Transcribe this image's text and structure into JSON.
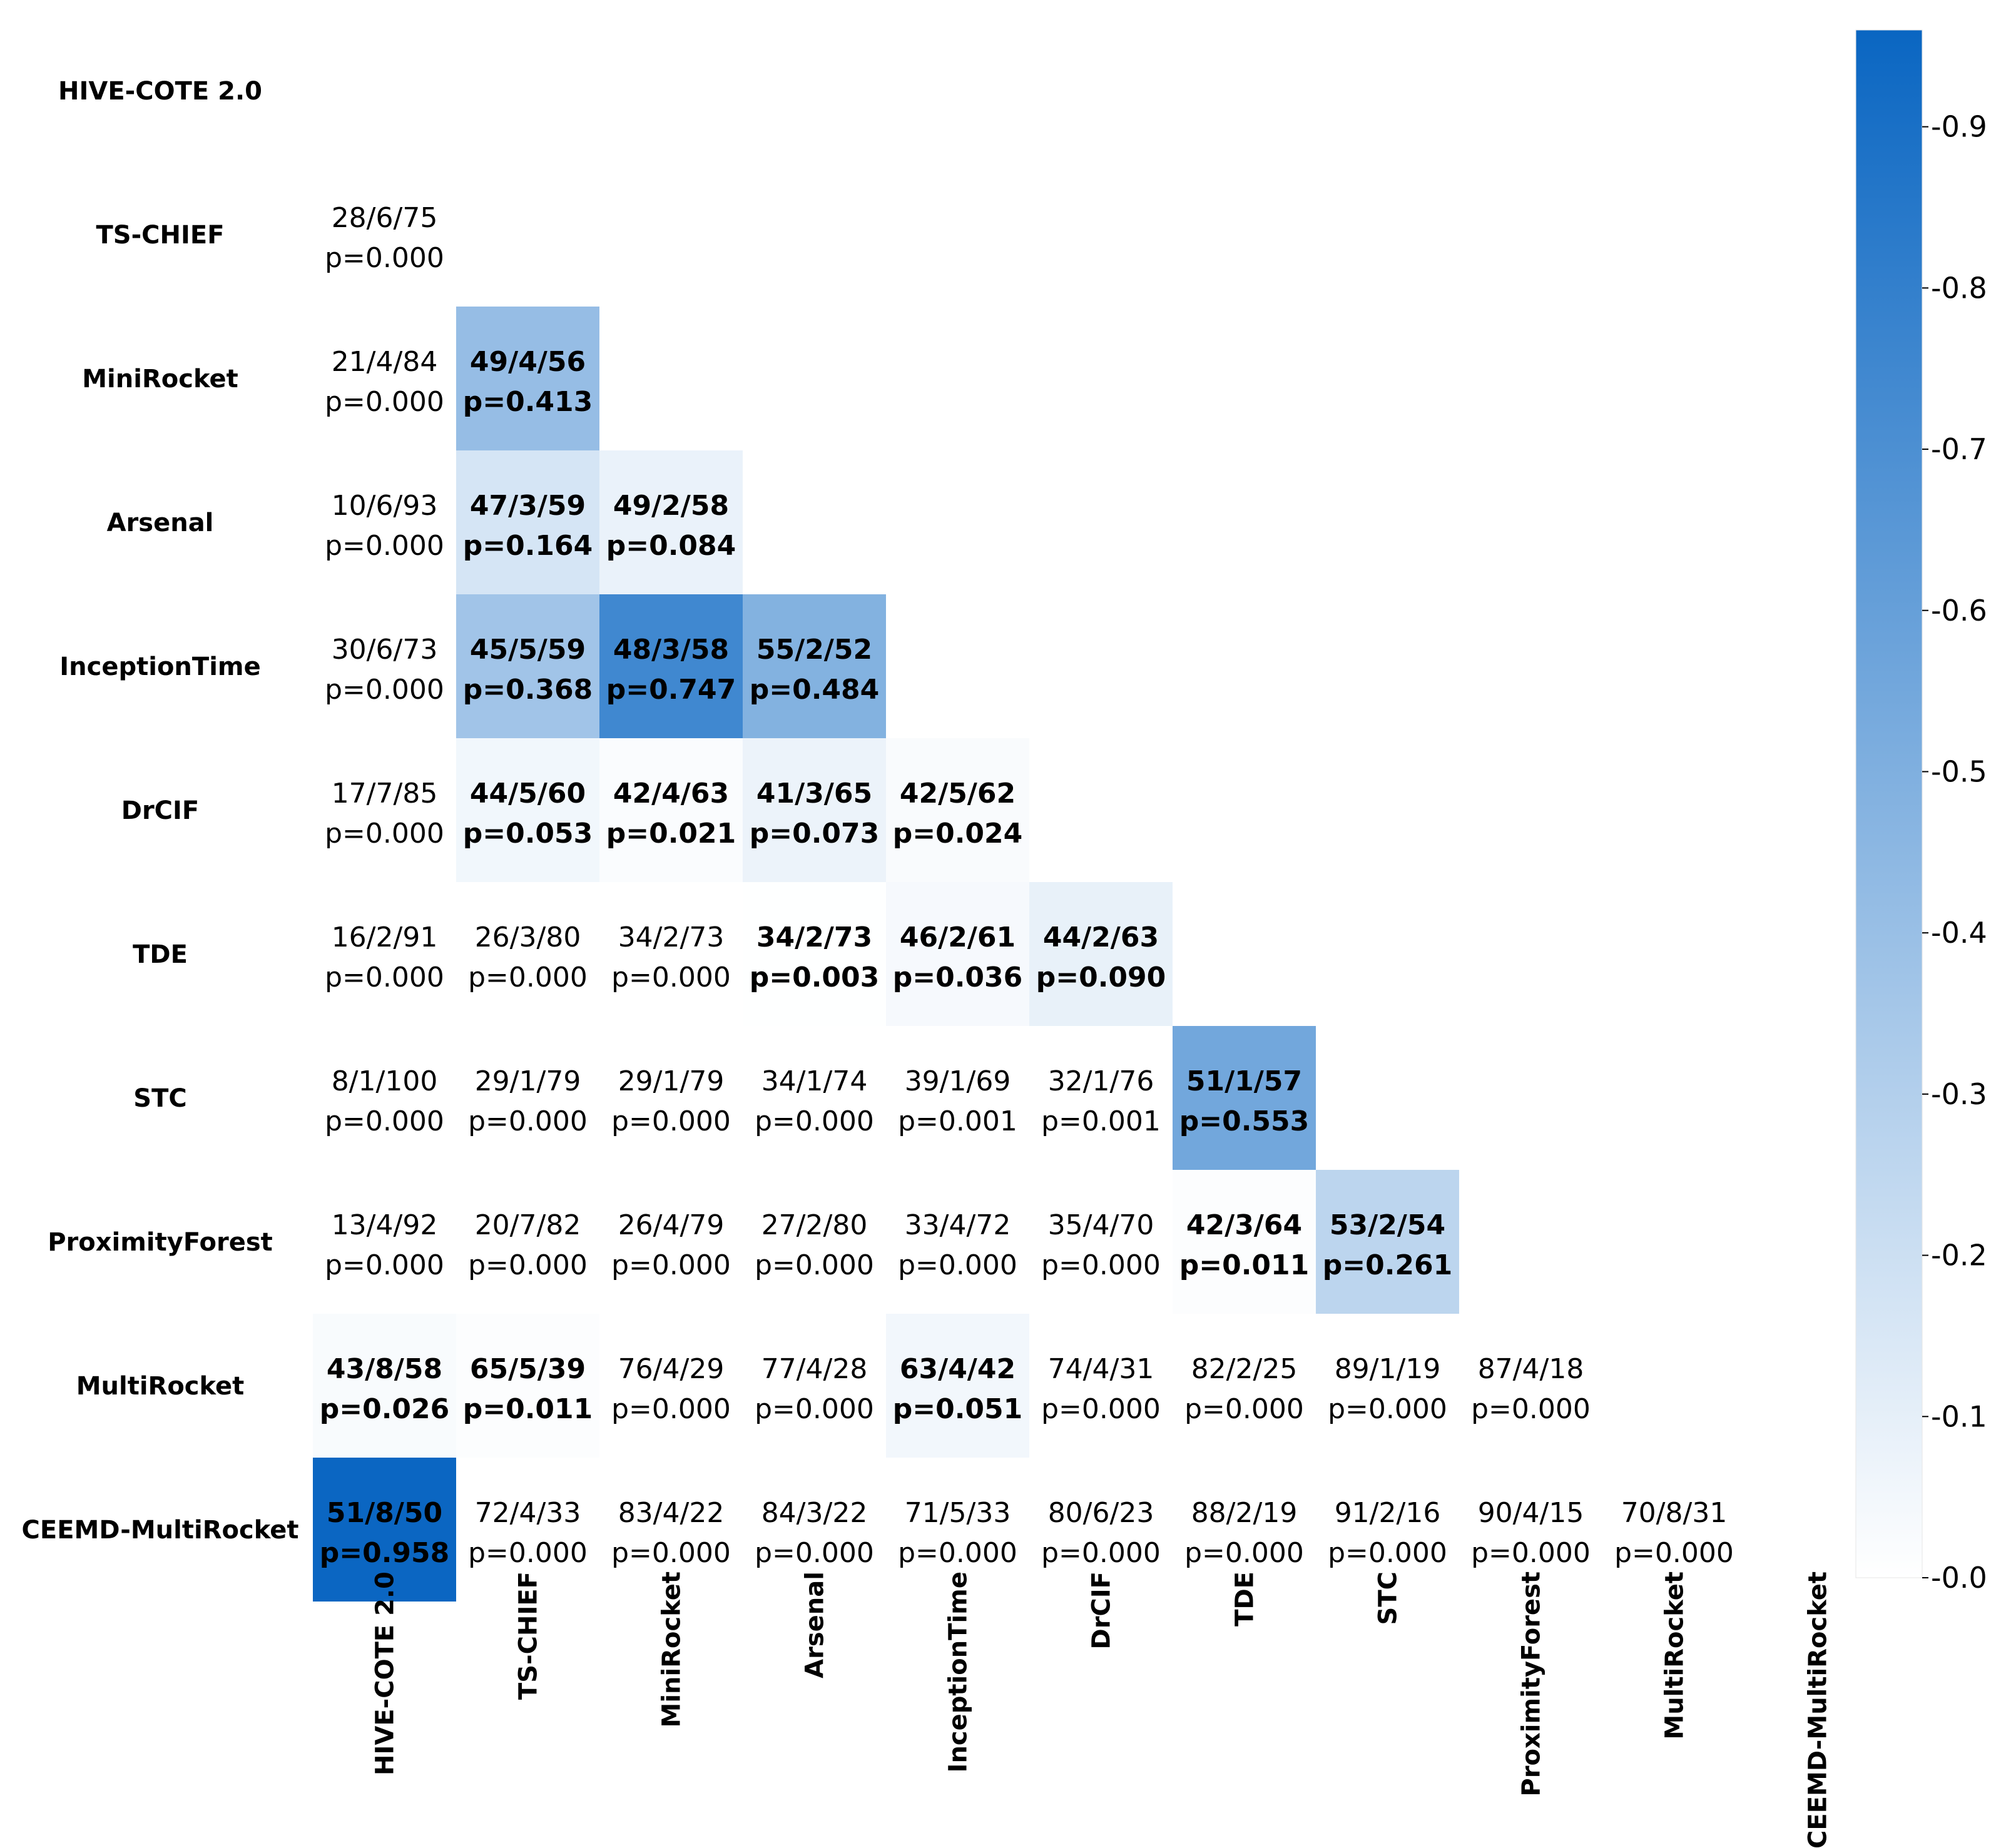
{
  "chart_data": {
    "type": "heatmap",
    "title": "",
    "methods": [
      "HIVE-COTE 2.0",
      "TS-CHIEF",
      "MiniRocket",
      "Arsenal",
      "InceptionTime",
      "DrCIF",
      "TDE",
      "STC",
      "ProximityForest",
      "MultiRocket",
      "CEEMD-MultiRocket"
    ],
    "row_labels": [
      "HIVE-COTE 2.0",
      "TS-CHIEF",
      "MiniRocket",
      "Arsenal",
      "InceptionTime",
      "DrCIF",
      "TDE",
      "STC",
      "ProximityForest",
      "MultiRocket",
      "CEEMD-MultiRocket"
    ],
    "col_labels": [
      "HIVE-COTE 2.0",
      "TS-CHIEF",
      "MiniRocket",
      "Arsenal",
      "InceptionTime",
      "DrCIF",
      "TDE",
      "STC",
      "ProximityForest",
      "MultiRocket",
      "CEEMD-MultiRocket"
    ],
    "cells": [
      {
        "row": 1,
        "col": 0,
        "wtl": "28/6/75",
        "p": "p=0.000",
        "value": 0.0,
        "significant": false
      },
      {
        "row": 2,
        "col": 0,
        "wtl": "21/4/84",
        "p": "p=0.000",
        "value": 0.0,
        "significant": false
      },
      {
        "row": 2,
        "col": 1,
        "wtl": "49/4/56",
        "p": "p=0.413",
        "value": 0.413,
        "significant": true
      },
      {
        "row": 3,
        "col": 0,
        "wtl": "10/6/93",
        "p": "p=0.000",
        "value": 0.0,
        "significant": false
      },
      {
        "row": 3,
        "col": 1,
        "wtl": "47/3/59",
        "p": "p=0.164",
        "value": 0.164,
        "significant": true
      },
      {
        "row": 3,
        "col": 2,
        "wtl": "49/2/58",
        "p": "p=0.084",
        "value": 0.084,
        "significant": true
      },
      {
        "row": 4,
        "col": 0,
        "wtl": "30/6/73",
        "p": "p=0.000",
        "value": 0.0,
        "significant": false
      },
      {
        "row": 4,
        "col": 1,
        "wtl": "45/5/59",
        "p": "p=0.368",
        "value": 0.368,
        "significant": true
      },
      {
        "row": 4,
        "col": 2,
        "wtl": "48/3/58",
        "p": "p=0.747",
        "value": 0.747,
        "significant": true
      },
      {
        "row": 4,
        "col": 3,
        "wtl": "55/2/52",
        "p": "p=0.484",
        "value": 0.484,
        "significant": true
      },
      {
        "row": 5,
        "col": 0,
        "wtl": "17/7/85",
        "p": "p=0.000",
        "value": 0.0,
        "significant": false
      },
      {
        "row": 5,
        "col": 1,
        "wtl": "44/5/60",
        "p": "p=0.053",
        "value": 0.053,
        "significant": true
      },
      {
        "row": 5,
        "col": 2,
        "wtl": "42/4/63",
        "p": "p=0.021",
        "value": 0.021,
        "significant": true
      },
      {
        "row": 5,
        "col": 3,
        "wtl": "41/3/65",
        "p": "p=0.073",
        "value": 0.073,
        "significant": true
      },
      {
        "row": 5,
        "col": 4,
        "wtl": "42/5/62",
        "p": "p=0.024",
        "value": 0.024,
        "significant": true
      },
      {
        "row": 6,
        "col": 0,
        "wtl": "16/2/91",
        "p": "p=0.000",
        "value": 0.0,
        "significant": false
      },
      {
        "row": 6,
        "col": 1,
        "wtl": "26/3/80",
        "p": "p=0.000",
        "value": 0.0,
        "significant": false
      },
      {
        "row": 6,
        "col": 2,
        "wtl": "34/2/73",
        "p": "p=0.000",
        "value": 0.0,
        "significant": false
      },
      {
        "row": 6,
        "col": 3,
        "wtl": "34/2/73",
        "p": "p=0.003",
        "value": 0.003,
        "significant": true
      },
      {
        "row": 6,
        "col": 4,
        "wtl": "46/2/61",
        "p": "p=0.036",
        "value": 0.036,
        "significant": true
      },
      {
        "row": 6,
        "col": 5,
        "wtl": "44/2/63",
        "p": "p=0.090",
        "value": 0.09,
        "significant": true
      },
      {
        "row": 7,
        "col": 0,
        "wtl": "8/1/100",
        "p": "p=0.000",
        "value": 0.0,
        "significant": false
      },
      {
        "row": 7,
        "col": 1,
        "wtl": "29/1/79",
        "p": "p=0.000",
        "value": 0.0,
        "significant": false
      },
      {
        "row": 7,
        "col": 2,
        "wtl": "29/1/79",
        "p": "p=0.000",
        "value": 0.0,
        "significant": false
      },
      {
        "row": 7,
        "col": 3,
        "wtl": "34/1/74",
        "p": "p=0.000",
        "value": 0.0,
        "significant": false
      },
      {
        "row": 7,
        "col": 4,
        "wtl": "39/1/69",
        "p": "p=0.001",
        "value": 0.001,
        "significant": false
      },
      {
        "row": 7,
        "col": 5,
        "wtl": "32/1/76",
        "p": "p=0.001",
        "value": 0.001,
        "significant": false
      },
      {
        "row": 7,
        "col": 6,
        "wtl": "51/1/57",
        "p": "p=0.553",
        "value": 0.553,
        "significant": true
      },
      {
        "row": 8,
        "col": 0,
        "wtl": "13/4/92",
        "p": "p=0.000",
        "value": 0.0,
        "significant": false
      },
      {
        "row": 8,
        "col": 1,
        "wtl": "20/7/82",
        "p": "p=0.000",
        "value": 0.0,
        "significant": false
      },
      {
        "row": 8,
        "col": 2,
        "wtl": "26/4/79",
        "p": "p=0.000",
        "value": 0.0,
        "significant": false
      },
      {
        "row": 8,
        "col": 3,
        "wtl": "27/2/80",
        "p": "p=0.000",
        "value": 0.0,
        "significant": false
      },
      {
        "row": 8,
        "col": 4,
        "wtl": "33/4/72",
        "p": "p=0.000",
        "value": 0.0,
        "significant": false
      },
      {
        "row": 8,
        "col": 5,
        "wtl": "35/4/70",
        "p": "p=0.000",
        "value": 0.0,
        "significant": false
      },
      {
        "row": 8,
        "col": 6,
        "wtl": "42/3/64",
        "p": "p=0.011",
        "value": 0.011,
        "significant": true
      },
      {
        "row": 8,
        "col": 7,
        "wtl": "53/2/54",
        "p": "p=0.261",
        "value": 0.261,
        "significant": true
      },
      {
        "row": 9,
        "col": 0,
        "wtl": "43/8/58",
        "p": "p=0.026",
        "value": 0.026,
        "significant": true
      },
      {
        "row": 9,
        "col": 1,
        "wtl": "65/5/39",
        "p": "p=0.011",
        "value": 0.011,
        "significant": true
      },
      {
        "row": 9,
        "col": 2,
        "wtl": "76/4/29",
        "p": "p=0.000",
        "value": 0.0,
        "significant": false
      },
      {
        "row": 9,
        "col": 3,
        "wtl": "77/4/28",
        "p": "p=0.000",
        "value": 0.0,
        "significant": false
      },
      {
        "row": 9,
        "col": 4,
        "wtl": "63/4/42",
        "p": "p=0.051",
        "value": 0.051,
        "significant": true
      },
      {
        "row": 9,
        "col": 5,
        "wtl": "74/4/31",
        "p": "p=0.000",
        "value": 0.0,
        "significant": false
      },
      {
        "row": 9,
        "col": 6,
        "wtl": "82/2/25",
        "p": "p=0.000",
        "value": 0.0,
        "significant": false
      },
      {
        "row": 9,
        "col": 7,
        "wtl": "89/1/19",
        "p": "p=0.000",
        "value": 0.0,
        "significant": false
      },
      {
        "row": 9,
        "col": 8,
        "wtl": "87/4/18",
        "p": "p=0.000",
        "value": 0.0,
        "significant": false
      },
      {
        "row": 10,
        "col": 0,
        "wtl": "51/8/50",
        "p": "p=0.958",
        "value": 0.958,
        "significant": true
      },
      {
        "row": 10,
        "col": 1,
        "wtl": "72/4/33",
        "p": "p=0.000",
        "value": 0.0,
        "significant": false
      },
      {
        "row": 10,
        "col": 2,
        "wtl": "83/4/22",
        "p": "p=0.000",
        "value": 0.0,
        "significant": false
      },
      {
        "row": 10,
        "col": 3,
        "wtl": "84/3/22",
        "p": "p=0.000",
        "value": 0.0,
        "significant": false
      },
      {
        "row": 10,
        "col": 4,
        "wtl": "71/5/33",
        "p": "p=0.000",
        "value": 0.0,
        "significant": false
      },
      {
        "row": 10,
        "col": 5,
        "wtl": "80/6/23",
        "p": "p=0.000",
        "value": 0.0,
        "significant": false
      },
      {
        "row": 10,
        "col": 6,
        "wtl": "88/2/19",
        "p": "p=0.000",
        "value": 0.0,
        "significant": false
      },
      {
        "row": 10,
        "col": 7,
        "wtl": "91/2/16",
        "p": "p=0.000",
        "value": 0.0,
        "significant": false
      },
      {
        "row": 10,
        "col": 8,
        "wtl": "90/4/15",
        "p": "p=0.000",
        "value": 0.0,
        "significant": false
      },
      {
        "row": 10,
        "col": 9,
        "wtl": "70/8/31",
        "p": "p=0.000",
        "value": 0.0,
        "significant": false
      }
    ],
    "colorbar": {
      "min": 0.0,
      "max": 0.96,
      "ticks": [
        0.0,
        0.1,
        0.2,
        0.3,
        0.4,
        0.5,
        0.6,
        0.7,
        0.8,
        0.9
      ],
      "tick_labels": [
        "-0.0",
        "-0.1",
        "-0.2",
        "-0.3",
        "-0.4",
        "-0.5",
        "-0.6",
        "-0.7",
        "-0.8",
        "-0.9"
      ],
      "placement": "right"
    },
    "color_low": "#ffffff",
    "color_high": "#0a66c2",
    "text_color": "#000000"
  }
}
